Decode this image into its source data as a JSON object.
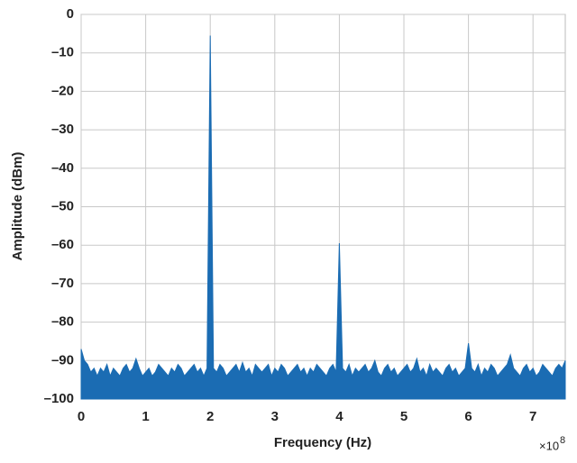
{
  "chart_data": {
    "type": "area",
    "xlabel": "Frequency (Hz)",
    "ylabel": "Amplitude (dBm)",
    "x_multiplier": "×10",
    "x_multiplier_exponent": "8",
    "xlim": [
      0,
      7.5
    ],
    "xticks": [
      0,
      1,
      2,
      3,
      4,
      5,
      6,
      7
    ],
    "ylim": [
      -100,
      0
    ],
    "yticks": [
      {
        "value": 0,
        "label": "0"
      },
      {
        "value": -10,
        "label": "–10"
      },
      {
        "value": -20,
        "label": "–20"
      },
      {
        "value": -30,
        "label": "–30"
      },
      {
        "value": -40,
        "label": "–40"
      },
      {
        "value": -50,
        "label": "–50"
      },
      {
        "value": -60,
        "label": "–60"
      },
      {
        "value": -70,
        "label": "–70"
      },
      {
        "value": -80,
        "label": "–80"
      },
      {
        "value": -90,
        "label": "–90"
      },
      {
        "value": -100,
        "label": "–100"
      }
    ],
    "grid": true,
    "x": [
      0,
      0.05,
      0.1,
      0.15,
      0.2,
      0.25,
      0.3,
      0.35,
      0.4,
      0.45,
      0.5,
      0.55,
      0.6,
      0.65,
      0.7,
      0.75,
      0.8,
      0.85,
      0.9,
      0.95,
      1,
      1.05,
      1.1,
      1.15,
      1.2,
      1.25,
      1.3,
      1.35,
      1.4,
      1.45,
      1.5,
      1.55,
      1.6,
      1.65,
      1.7,
      1.75,
      1.8,
      1.85,
      1.9,
      1.95,
      2,
      2.05,
      2.1,
      2.15,
      2.2,
      2.25,
      2.3,
      2.35,
      2.4,
      2.45,
      2.5,
      2.55,
      2.6,
      2.65,
      2.7,
      2.75,
      2.8,
      2.85,
      2.9,
      2.95,
      3,
      3.05,
      3.1,
      3.15,
      3.2,
      3.25,
      3.3,
      3.35,
      3.4,
      3.45,
      3.5,
      3.55,
      3.6,
      3.65,
      3.7,
      3.75,
      3.8,
      3.85,
      3.9,
      3.95,
      4,
      4.05,
      4.1,
      4.15,
      4.2,
      4.25,
      4.3,
      4.35,
      4.4,
      4.45,
      4.5,
      4.55,
      4.6,
      4.65,
      4.7,
      4.75,
      4.8,
      4.85,
      4.9,
      4.95,
      5,
      5.05,
      5.1,
      5.15,
      5.2,
      5.25,
      5.3,
      5.35,
      5.4,
      5.45,
      5.5,
      5.55,
      5.6,
      5.65,
      5.7,
      5.75,
      5.8,
      5.85,
      5.9,
      5.95,
      6,
      6.05,
      6.1,
      6.15,
      6.2,
      6.25,
      6.3,
      6.35,
      6.4,
      6.45,
      6.5,
      6.55,
      6.6,
      6.65,
      6.7,
      6.75,
      6.8,
      6.85,
      6.9,
      6.95,
      7,
      7.05,
      7.1,
      7.15,
      7.2,
      7.25,
      7.3,
      7.35,
      7.4,
      7.45,
      7.5
    ],
    "series": [
      {
        "color": "#1b6cb3",
        "values": [
          -87,
          -90,
          -91,
          -93,
          -92,
          -94,
          -92,
          -93,
          -91,
          -94,
          -92,
          -93,
          -94,
          -92,
          -91,
          -93,
          -92,
          -89.5,
          -92,
          -94,
          -93,
          -92,
          -94,
          -93,
          -91,
          -92,
          -93,
          -94,
          -92,
          -93,
          -91,
          -92,
          -94,
          -93,
          -92,
          -91,
          -93,
          -92,
          -94,
          -92,
          -5.5,
          -92,
          -93,
          -91,
          -92,
          -94,
          -93,
          -92,
          -91,
          -93,
          -90.5,
          -93,
          -92,
          -94,
          -91,
          -92,
          -93,
          -92,
          -91,
          -94,
          -92,
          -93,
          -91,
          -92,
          -94,
          -93,
          -92,
          -91,
          -93,
          -92,
          -94,
          -92,
          -93,
          -91,
          -92,
          -93,
          -94,
          -92,
          -91,
          -93,
          -59.5,
          -92,
          -93,
          -91,
          -94,
          -92,
          -93,
          -92,
          -91,
          -93,
          -92,
          -90,
          -93,
          -94,
          -92,
          -91,
          -93,
          -92,
          -94,
          -93,
          -92,
          -91,
          -93,
          -92,
          -89.5,
          -93,
          -92,
          -94,
          -91,
          -93,
          -92,
          -93,
          -94,
          -92,
          -91,
          -93,
          -92,
          -94,
          -93,
          -92,
          -85.5,
          -92,
          -93,
          -91,
          -94,
          -92,
          -93,
          -91,
          -92,
          -94,
          -93,
          -92,
          -91,
          -88.5,
          -92,
          -93,
          -94,
          -92,
          -91,
          -93,
          -92,
          -94,
          -93,
          -91,
          -92,
          -93,
          -94,
          -92,
          -91,
          -92,
          -90
        ]
      }
    ]
  }
}
